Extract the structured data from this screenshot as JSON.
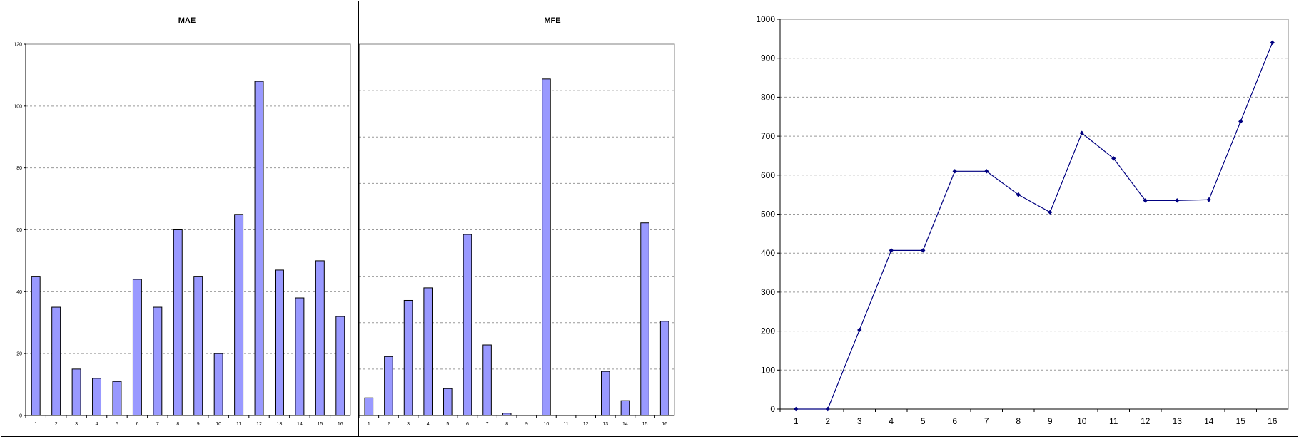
{
  "chart_data": [
    {
      "type": "bar",
      "title": "MAE",
      "categories": [
        "1",
        "2",
        "3",
        "4",
        "5",
        "6",
        "7",
        "8",
        "9",
        "10",
        "11",
        "12",
        "13",
        "14",
        "15",
        "16"
      ],
      "values": [
        45,
        35,
        15,
        12,
        11,
        44,
        35,
        60,
        45,
        20,
        65,
        108,
        47,
        38,
        50,
        32
      ],
      "ylim": [
        0,
        120
      ],
      "yticks": [
        "0",
        "20",
        "40",
        "60",
        "80",
        "100",
        "120"
      ],
      "grid": true,
      "bar_color": "#9999ff"
    },
    {
      "type": "bar",
      "title": "MFE",
      "categories": [
        "1",
        "2",
        "3",
        "4",
        "5",
        "6",
        "7",
        "8",
        "9",
        "10",
        "11",
        "12",
        "13",
        "14",
        "15",
        "16"
      ],
      "values": [
        38,
        127,
        248,
        275,
        58,
        390,
        152,
        5,
        0,
        725,
        0,
        0,
        95,
        32,
        415,
        203
      ],
      "ylim": [
        0,
        800
      ],
      "yticks": [
        "0",
        "100",
        "200",
        "300",
        "400",
        "500",
        "600",
        "700",
        "800"
      ],
      "grid": true,
      "bar_color": "#9999ff"
    },
    {
      "type": "line",
      "title": "",
      "x": [
        "1",
        "2",
        "3",
        "4",
        "5",
        "6",
        "7",
        "8",
        "9",
        "10",
        "11",
        "12",
        "13",
        "14",
        "15",
        "16"
      ],
      "values": [
        0,
        0,
        203,
        407,
        407,
        610,
        610,
        550,
        505,
        708,
        643,
        535,
        535,
        537,
        738,
        940
      ],
      "ylim": [
        0,
        1000
      ],
      "yticks": [
        "0",
        "100",
        "200",
        "300",
        "400",
        "500",
        "600",
        "700",
        "800",
        "900",
        "1000"
      ],
      "grid": true,
      "line_color": "#000080"
    }
  ]
}
